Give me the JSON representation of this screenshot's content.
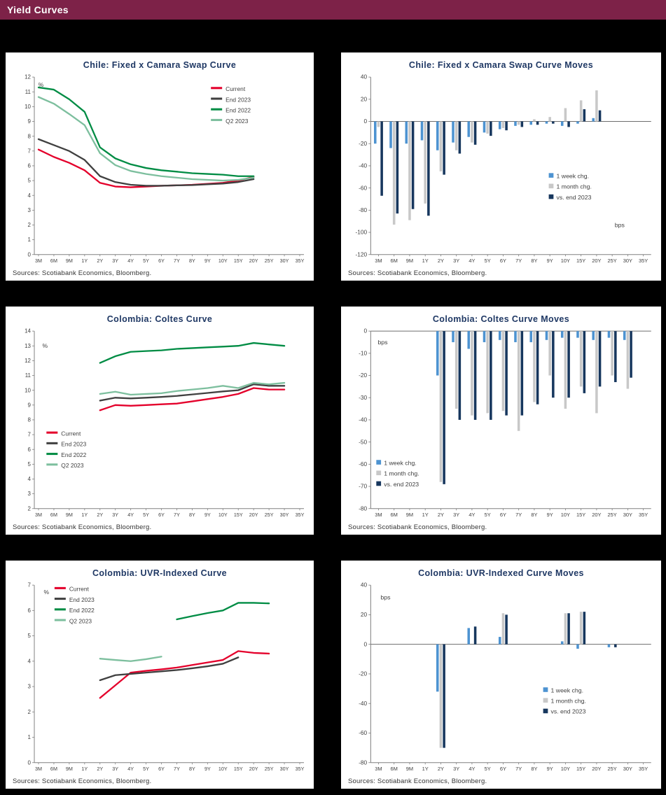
{
  "page": {
    "title": "Yield Curves"
  },
  "colors": {
    "header_bg": "#7d2248",
    "header_text": "#ffffff",
    "page_bg": "#000000",
    "panel_bg": "#ffffff",
    "title_text": "#1f3864",
    "axis": "#808080",
    "tick_text": "#404040",
    "source_text": "#333333",
    "current": "#e4002b",
    "end_2023": "#404040",
    "end_2022": "#008c44",
    "q2_2023": "#7dbf9e",
    "week_chg": "#4d93d1",
    "month_chg": "#c8c8c8",
    "vs_end_2023": "#17375e"
  },
  "categories": [
    "3M",
    "6M",
    "9M",
    "1Y",
    "2Y",
    "3Y",
    "4Y",
    "5Y",
    "6Y",
    "7Y",
    "8Y",
    "9Y",
    "10Y",
    "15Y",
    "20Y",
    "25Y",
    "30Y",
    "35Y"
  ],
  "chart_data": [
    {
      "title": "Chile:  Fixed x Camara Swap Curve",
      "type": "line",
      "ylim": [
        0,
        12
      ],
      "ystep": 1,
      "unit": {
        "text": "%",
        "x": 0.015,
        "y": 0.055
      },
      "legend_pos": [
        0.655,
        0.075
      ],
      "source": "Sources: Scotiabank Economics, Bloomberg.",
      "series": [
        {
          "name": "Current",
          "color_key": "current",
          "values": [
            7.1,
            6.6,
            6.2,
            5.7,
            4.85,
            4.6,
            4.55,
            4.6,
            4.65,
            4.68,
            4.72,
            4.78,
            4.85,
            5.0,
            5.25,
            null,
            null,
            null
          ]
        },
        {
          "name": "End 2023",
          "color_key": "end_2023",
          "values": [
            7.8,
            7.4,
            7.0,
            6.4,
            5.3,
            4.9,
            4.72,
            4.65,
            4.65,
            4.68,
            4.7,
            4.75,
            4.8,
            4.9,
            5.1,
            null,
            null,
            null
          ]
        },
        {
          "name": "End 2022",
          "color_key": "end_2022",
          "values": [
            11.3,
            11.15,
            10.5,
            9.65,
            7.25,
            6.5,
            6.1,
            5.85,
            5.7,
            5.6,
            5.5,
            5.45,
            5.4,
            5.3,
            5.3,
            null,
            null,
            null
          ]
        },
        {
          "name": "Q2 2023",
          "color_key": "q2_2023",
          "values": [
            10.65,
            10.2,
            9.5,
            8.75,
            6.85,
            6.05,
            5.65,
            5.45,
            5.3,
            5.2,
            5.1,
            5.05,
            5.0,
            5.05,
            5.2,
            null,
            null,
            null
          ]
        }
      ]
    },
    {
      "title": "Chile:  Fixed x Camara Swap Curve Moves",
      "type": "bar",
      "ylim": [
        -120,
        40
      ],
      "ystep": 20,
      "unit": {
        "text": "bps",
        "x": 0.87,
        "y": 0.845
      },
      "legend_pos": [
        0.635,
        0.565
      ],
      "source": "Sources: Scotiabank Economics, Bloomberg.",
      "series": [
        {
          "name": "1 week chg.",
          "color_key": "week_chg",
          "values": [
            -20,
            -24,
            -20,
            -17,
            -26,
            -19,
            -14,
            -10,
            -7,
            -4,
            -3,
            -2,
            -4,
            -2,
            3,
            null,
            null,
            null
          ]
        },
        {
          "name": "1 month chg.",
          "color_key": "month_chg",
          "values": [
            -5,
            -93,
            -89,
            -74,
            -45,
            -26,
            -19,
            -11,
            -6,
            -3,
            2,
            4,
            12,
            19,
            28,
            null,
            null,
            null
          ]
        },
        {
          "name": "vs. end 2023",
          "color_key": "vs_end_2023",
          "values": [
            -67,
            -83,
            -79,
            -85,
            -48,
            -29,
            -21,
            -13,
            -8,
            -5,
            -3,
            -2,
            -5,
            11,
            10,
            null,
            null,
            null
          ]
        }
      ]
    },
    {
      "title": "Colombia:  Coltes Curve",
      "type": "line",
      "ylim": [
        2,
        14
      ],
      "ystep": 1,
      "unit": {
        "text": "%",
        "x": 0.03,
        "y": 0.095
      },
      "legend_pos": [
        0.045,
        0.585
      ],
      "source": "Sources: Scotiabank Economics, Bloomberg.",
      "series": [
        {
          "name": "Current",
          "color_key": "current",
          "values": [
            null,
            null,
            null,
            null,
            8.65,
            9.0,
            8.95,
            9.0,
            9.05,
            9.1,
            9.25,
            9.4,
            9.55,
            9.75,
            10.15,
            10.05,
            10.05,
            null
          ]
        },
        {
          "name": "End 2023",
          "color_key": "end_2023",
          "values": [
            null,
            null,
            null,
            null,
            9.3,
            9.5,
            9.45,
            9.5,
            9.55,
            9.62,
            9.72,
            9.82,
            9.92,
            10.0,
            10.4,
            10.3,
            10.3,
            null
          ]
        },
        {
          "name": "End 2022",
          "color_key": "end_2022",
          "values": [
            null,
            null,
            null,
            null,
            11.85,
            12.3,
            12.6,
            12.65,
            12.7,
            12.8,
            12.85,
            12.9,
            12.95,
            13.0,
            13.2,
            13.1,
            13.0,
            null
          ]
        },
        {
          "name": "Q2 2023",
          "color_key": "q2_2023",
          "values": [
            null,
            null,
            null,
            null,
            9.75,
            9.9,
            9.7,
            9.75,
            9.8,
            9.95,
            10.05,
            10.15,
            10.3,
            10.15,
            10.5,
            10.4,
            10.5,
            null
          ]
        }
      ]
    },
    {
      "title": "Colombia:  Coltes Curve Moves",
      "type": "bar",
      "ylim": [
        -80,
        0
      ],
      "ystep": 10,
      "unit": {
        "text": "bps",
        "x": 0.025,
        "y": 0.075
      },
      "legend_pos": [
        0.02,
        0.75
      ],
      "source": "Sources: Scotiabank Economics, Bloomberg.",
      "series": [
        {
          "name": "1 week chg.",
          "color_key": "week_chg",
          "values": [
            null,
            null,
            null,
            null,
            -20,
            -5,
            -8,
            -5,
            -4,
            -5,
            -5,
            -4,
            -3,
            -3,
            -4,
            -3,
            -4,
            null
          ]
        },
        {
          "name": "1 month chg.",
          "color_key": "month_chg",
          "values": [
            null,
            null,
            null,
            null,
            -68,
            -35,
            -38,
            -37,
            -36,
            -45,
            -32,
            -20,
            -35,
            -25,
            -37,
            -20,
            -26,
            null
          ]
        },
        {
          "name": "vs. end 2023",
          "color_key": "vs_end_2023",
          "values": [
            null,
            null,
            null,
            null,
            -69,
            -40,
            -40,
            -40,
            -38,
            -38,
            -33,
            -30,
            -30,
            -28,
            -25,
            -23,
            -21,
            null
          ]
        }
      ]
    },
    {
      "title": "Colombia:  UVR-Indexed Curve",
      "type": "line",
      "ylim": [
        0,
        7
      ],
      "ystep": 1,
      "unit": {
        "text": "%",
        "x": 0.035,
        "y": 0.05
      },
      "legend_pos": [
        0.075,
        0.03
      ],
      "source": "Sources: Scotiabank Economics, Bloomberg.",
      "series": [
        {
          "name": "Current",
          "color_key": "current",
          "values": [
            null,
            null,
            null,
            null,
            2.55,
            3.05,
            3.55,
            3.62,
            3.68,
            3.75,
            3.85,
            3.95,
            4.05,
            4.4,
            4.33,
            4.3,
            null,
            null
          ]
        },
        {
          "name": "End 2023",
          "color_key": "end_2023",
          "values": [
            null,
            null,
            null,
            null,
            3.25,
            3.45,
            3.5,
            3.55,
            3.6,
            3.65,
            3.72,
            3.8,
            3.9,
            4.15,
            null,
            null,
            null,
            null
          ]
        },
        {
          "name": "End 2022",
          "color_key": "end_2022",
          "values": [
            null,
            null,
            null,
            null,
            null,
            null,
            null,
            null,
            null,
            5.65,
            5.78,
            5.9,
            6.0,
            6.3,
            6.3,
            6.28,
            null,
            null
          ]
        },
        {
          "name": "Q2 2023",
          "color_key": "q2_2023",
          "values": [
            null,
            null,
            null,
            null,
            4.1,
            4.05,
            4.0,
            4.08,
            4.18,
            null,
            null,
            null,
            null,
            null,
            null,
            null,
            null,
            null
          ]
        }
      ]
    },
    {
      "title": "Colombia:  UVR-Indexed Curve Moves",
      "type": "bar",
      "ylim": [
        -80,
        40
      ],
      "ystep": 20,
      "unit": {
        "text": "bps",
        "x": 0.035,
        "y": 0.08
      },
      "legend_pos": [
        0.615,
        0.6
      ],
      "source": "Sources: Scotiabank Economics, Bloomberg.",
      "series": [
        {
          "name": "1 week chg.",
          "color_key": "week_chg",
          "values": [
            null,
            null,
            null,
            null,
            -32,
            null,
            11,
            null,
            5,
            null,
            null,
            null,
            2,
            -3,
            null,
            -2,
            null,
            null
          ]
        },
        {
          "name": "1 month chg.",
          "color_key": "month_chg",
          "values": [
            null,
            null,
            null,
            null,
            -70,
            null,
            null,
            null,
            21,
            null,
            null,
            null,
            21,
            22,
            null,
            null,
            null,
            null
          ]
        },
        {
          "name": "vs. end 2023",
          "color_key": "vs_end_2023",
          "values": [
            null,
            null,
            null,
            null,
            -70,
            null,
            12,
            null,
            20,
            null,
            null,
            null,
            21,
            22,
            null,
            -2,
            null,
            null
          ]
        }
      ]
    }
  ]
}
